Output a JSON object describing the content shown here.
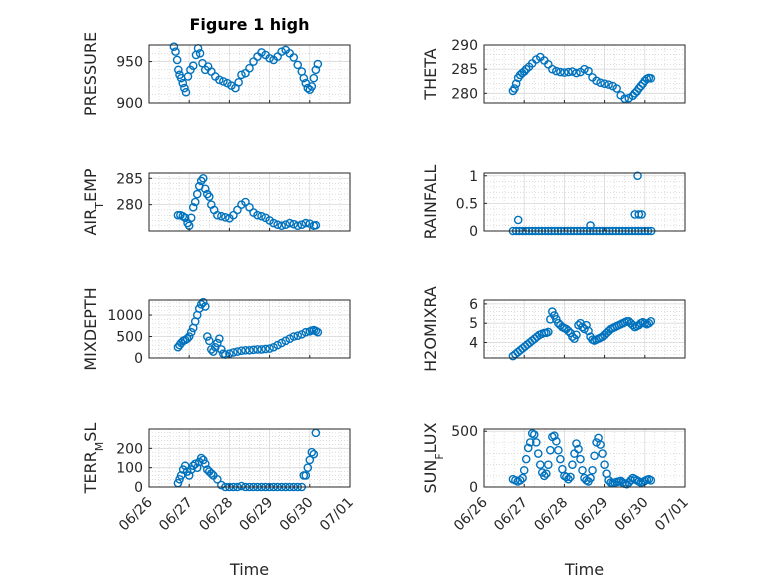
{
  "figure": {
    "title": "Figure 1 high",
    "xlabel": "Time"
  },
  "colors": {
    "marker": "#0072BD",
    "grid": "#d9d9d9",
    "axis": "#262626"
  },
  "chart_data": [
    {
      "type": "scatter",
      "name": "pressure",
      "title": "Figure 1 high",
      "ylabel": "PRESSURE",
      "ylim": [
        900,
        970
      ],
      "yticks": [
        900,
        950
      ],
      "grid": true,
      "xlim": [
        0,
        5
      ],
      "xticks": [
        "06/26",
        "06/27",
        "06/28",
        "06/29",
        "06/30",
        "07/01"
      ],
      "x": [
        0.62,
        0.66,
        0.7,
        0.73,
        0.76,
        0.8,
        0.84,
        0.88,
        0.92,
        0.97,
        1.03,
        1.1,
        1.17,
        1.22,
        1.27,
        1.33,
        1.4,
        1.47,
        1.55,
        1.65,
        1.75,
        1.85,
        1.95,
        2.05,
        2.15,
        2.23,
        2.3,
        2.4,
        2.5,
        2.6,
        2.7,
        2.8,
        2.9,
        3.0,
        3.1,
        3.2,
        3.3,
        3.4,
        3.5,
        3.6,
        3.7,
        3.8,
        3.85,
        3.9,
        3.95,
        4.0,
        4.05,
        4.1,
        4.15,
        4.2
      ],
      "y": [
        968,
        962,
        952,
        940,
        934,
        930,
        924,
        918,
        913,
        932,
        940,
        945,
        958,
        966,
        960,
        948,
        940,
        944,
        938,
        932,
        928,
        926,
        924,
        921,
        918,
        925,
        934,
        936,
        942,
        950,
        956,
        961,
        958,
        954,
        952,
        956,
        962,
        964,
        960,
        955,
        946,
        938,
        930,
        924,
        918,
        916,
        920,
        930,
        940,
        947
      ]
    },
    {
      "type": "scatter",
      "name": "theta",
      "ylabel": "THETA",
      "ylim": [
        278,
        290
      ],
      "yticks": [
        280,
        285,
        290
      ],
      "grid": true,
      "xlim": [
        0,
        5
      ],
      "xticks": [
        "06/26",
        "06/27",
        "06/28",
        "06/29",
        "06/30",
        "07/01"
      ],
      "x": [
        0.72,
        0.76,
        0.8,
        0.85,
        0.9,
        0.95,
        1.0,
        1.05,
        1.12,
        1.2,
        1.3,
        1.4,
        1.5,
        1.6,
        1.7,
        1.8,
        1.9,
        2.0,
        2.1,
        2.2,
        2.3,
        2.4,
        2.5,
        2.6,
        2.7,
        2.8,
        2.9,
        3.0,
        3.1,
        3.2,
        3.3,
        3.4,
        3.5,
        3.6,
        3.7,
        3.75,
        3.8,
        3.85,
        3.9,
        3.95,
        4.0,
        4.05,
        4.1,
        4.15
      ],
      "y": [
        280.5,
        281,
        282,
        283.2,
        283.8,
        284.2,
        284.5,
        285,
        285.5,
        286.2,
        287,
        287.5,
        286.8,
        286,
        285,
        284.6,
        284.4,
        284.3,
        284.4,
        284.5,
        284.2,
        284.4,
        285,
        284.6,
        283.3,
        282.6,
        282.2,
        282,
        281.8,
        281.5,
        281,
        279.6,
        278.9,
        279,
        279.5,
        280,
        280.4,
        281,
        281.5,
        282,
        282.6,
        283,
        283.2,
        283.1
      ]
    },
    {
      "type": "scatter",
      "name": "air_temp",
      "ylabel": "AIR_TEMP",
      "ylim": [
        275,
        286
      ],
      "yticks": [
        280,
        285
      ],
      "grid": true,
      "xlim": [
        0,
        5
      ],
      "xticks": [
        "06/26",
        "06/27",
        "06/28",
        "06/29",
        "06/30",
        "07/01"
      ],
      "x": [
        0.72,
        0.78,
        0.84,
        0.9,
        0.96,
        1.0,
        1.05,
        1.1,
        1.15,
        1.2,
        1.25,
        1.3,
        1.35,
        1.4,
        1.45,
        1.5,
        1.55,
        1.62,
        1.7,
        1.8,
        1.9,
        2.0,
        2.1,
        2.2,
        2.3,
        2.4,
        2.5,
        2.6,
        2.7,
        2.8,
        2.9,
        3.0,
        3.1,
        3.2,
        3.3,
        3.4,
        3.5,
        3.6,
        3.7,
        3.8,
        3.9,
        4.0,
        4.1,
        4.15
      ],
      "y": [
        278,
        278,
        277.8,
        277.5,
        276.5,
        276,
        277.5,
        279.5,
        280.5,
        282,
        283.5,
        284.5,
        285,
        283,
        282,
        281.5,
        280,
        279,
        278,
        277.8,
        277.6,
        277.4,
        278,
        279,
        280,
        280.5,
        279.5,
        278.5,
        278,
        277.8,
        277.5,
        277,
        276.5,
        276.2,
        276,
        276.2,
        276.5,
        276.3,
        276,
        276.2,
        276.5,
        276.4,
        276,
        276.1
      ]
    },
    {
      "type": "scatter",
      "name": "rainfall",
      "ylabel": "RAINFALL",
      "ylim": [
        0,
        1.05
      ],
      "yticks": [
        0,
        0.5,
        1
      ],
      "grid": true,
      "xlim": [
        0,
        5
      ],
      "xticks": [
        "06/26",
        "06/27",
        "06/28",
        "06/29",
        "06/30",
        "07/01"
      ],
      "x": [
        0.72,
        0.8,
        0.88,
        0.96,
        1.04,
        1.12,
        1.2,
        1.28,
        1.36,
        1.44,
        1.52,
        1.6,
        1.68,
        1.76,
        1.84,
        1.92,
        2.0,
        2.08,
        2.16,
        2.24,
        2.32,
        2.4,
        2.48,
        2.56,
        2.64,
        2.72,
        2.8,
        2.88,
        2.96,
        3.04,
        3.12,
        3.2,
        3.28,
        3.36,
        3.44,
        3.52,
        3.6,
        3.68,
        3.76,
        3.84,
        3.92,
        4.0,
        4.08,
        4.16,
        0.85,
        2.65,
        3.75,
        3.82,
        3.85,
        3.92
      ],
      "y": [
        0,
        0,
        0,
        0,
        0,
        0,
        0,
        0,
        0,
        0,
        0,
        0,
        0,
        0,
        0,
        0,
        0,
        0,
        0,
        0,
        0,
        0,
        0,
        0,
        0,
        0,
        0,
        0,
        0,
        0,
        0,
        0,
        0,
        0,
        0,
        0,
        0,
        0,
        0,
        0,
        0,
        0,
        0,
        0,
        0.2,
        0.1,
        0.3,
        1.0,
        0.3,
        0.3
      ]
    },
    {
      "type": "scatter",
      "name": "mixdepth",
      "ylabel": "MIXDEPTH",
      "ylim": [
        0,
        1350
      ],
      "yticks": [
        0,
        500,
        1000
      ],
      "grid": true,
      "xlim": [
        0,
        5
      ],
      "xticks": [
        "06/26",
        "06/27",
        "06/28",
        "06/29",
        "06/30",
        "07/01"
      ],
      "x": [
        0.72,
        0.76,
        0.8,
        0.85,
        0.9,
        0.95,
        1.0,
        1.05,
        1.1,
        1.15,
        1.2,
        1.25,
        1.3,
        1.35,
        1.4,
        1.45,
        1.5,
        1.55,
        1.6,
        1.65,
        1.7,
        1.75,
        1.8,
        1.85,
        1.9,
        2.0,
        2.1,
        2.2,
        2.3,
        2.4,
        2.5,
        2.6,
        2.7,
        2.8,
        2.9,
        3.0,
        3.1,
        3.2,
        3.3,
        3.4,
        3.5,
        3.6,
        3.7,
        3.8,
        3.9,
        4.0,
        4.05,
        4.1,
        4.15,
        4.2
      ],
      "y": [
        250,
        300,
        350,
        400,
        420,
        450,
        500,
        600,
        700,
        850,
        1000,
        1150,
        1250,
        1300,
        1200,
        500,
        400,
        200,
        150,
        250,
        350,
        450,
        200,
        100,
        80,
        100,
        130,
        150,
        170,
        180,
        180,
        190,
        200,
        200,
        210,
        220,
        250,
        300,
        350,
        400,
        450,
        500,
        520,
        550,
        600,
        620,
        640,
        650,
        630,
        600
      ]
    },
    {
      "type": "scatter",
      "name": "h2omixra",
      "ylabel": "H2OMIXRA",
      "ylim": [
        3.2,
        6.2
      ],
      "yticks": [
        4,
        5,
        6
      ],
      "grid": true,
      "xlim": [
        0,
        5
      ],
      "xticks": [
        "06/26",
        "06/27",
        "06/28",
        "06/29",
        "06/30",
        "07/01"
      ],
      "x": [
        0.72,
        0.78,
        0.84,
        0.9,
        0.96,
        1.02,
        1.08,
        1.14,
        1.2,
        1.26,
        1.32,
        1.38,
        1.44,
        1.5,
        1.55,
        1.6,
        1.65,
        1.7,
        1.75,
        1.8,
        1.85,
        1.9,
        1.95,
        2.0,
        2.05,
        2.1,
        2.15,
        2.2,
        2.25,
        2.3,
        2.35,
        2.4,
        2.45,
        2.5,
        2.55,
        2.6,
        2.65,
        2.7,
        2.75,
        2.8,
        2.85,
        2.9,
        2.95,
        3.0,
        3.05,
        3.1,
        3.15,
        3.2,
        3.25,
        3.3,
        3.35,
        3.4,
        3.45,
        3.5,
        3.55,
        3.6,
        3.65,
        3.7,
        3.75,
        3.8,
        3.85,
        3.9,
        3.95,
        4.0,
        4.05,
        4.1,
        4.15
      ],
      "y": [
        3.3,
        3.4,
        3.5,
        3.6,
        3.7,
        3.8,
        3.9,
        4.0,
        4.1,
        4.2,
        4.3,
        4.4,
        4.45,
        4.5,
        4.5,
        4.55,
        5.2,
        5.6,
        5.4,
        5.2,
        5.0,
        4.9,
        4.8,
        4.75,
        4.7,
        4.6,
        4.5,
        4.3,
        4.2,
        4.4,
        4.9,
        5.0,
        4.8,
        4.7,
        4.9,
        4.6,
        4.3,
        4.15,
        4.1,
        4.15,
        4.2,
        4.25,
        4.3,
        4.4,
        4.5,
        4.6,
        4.7,
        4.75,
        4.8,
        4.85,
        4.9,
        4.95,
        5.0,
        5.05,
        5.1,
        5.1,
        5.0,
        4.9,
        4.8,
        4.85,
        4.9,
        5.0,
        5.05,
        5.0,
        4.95,
        5.0,
        5.1
      ]
    },
    {
      "type": "scatter",
      "name": "terr_msl",
      "ylabel": "TERR_MSL",
      "ylim": [
        0,
        300
      ],
      "yticks": [
        0,
        100,
        200
      ],
      "grid": true,
      "xlim": [
        0,
        5
      ],
      "xticks": [
        "06/26",
        "06/27",
        "06/28",
        "06/29",
        "06/30",
        "07/01"
      ],
      "x": [
        0.72,
        0.76,
        0.8,
        0.85,
        0.9,
        0.95,
        1.0,
        1.05,
        1.1,
        1.15,
        1.2,
        1.25,
        1.3,
        1.35,
        1.4,
        1.45,
        1.5,
        1.55,
        1.6,
        1.7,
        1.8,
        1.9,
        2.0,
        2.1,
        2.2,
        2.3,
        2.4,
        2.5,
        2.6,
        2.7,
        2.8,
        2.9,
        3.0,
        3.1,
        3.2,
        3.3,
        3.4,
        3.5,
        3.6,
        3.7,
        3.8,
        3.85,
        3.9,
        3.95,
        4.0,
        4.05,
        4.1,
        4.15
      ],
      "y": [
        20,
        40,
        60,
        90,
        110,
        80,
        60,
        90,
        110,
        120,
        100,
        130,
        150,
        140,
        120,
        90,
        80,
        70,
        60,
        40,
        10,
        0,
        0,
        0,
        0,
        5,
        0,
        0,
        0,
        0,
        0,
        0,
        0,
        0,
        0,
        0,
        0,
        0,
        0,
        0,
        0,
        60,
        60,
        100,
        140,
        180,
        170,
        280
      ]
    },
    {
      "type": "scatter",
      "name": "sun_flux",
      "ylabel": "SUN_FLUX",
      "ylim": [
        0,
        520
      ],
      "yticks": [
        0,
        500
      ],
      "grid": true,
      "xlim": [
        0,
        5
      ],
      "xticks": [
        "06/26",
        "06/27",
        "06/28",
        "06/29",
        "06/30",
        "07/01"
      ],
      "x": [
        0.72,
        0.78,
        0.84,
        0.9,
        0.96,
        1.0,
        1.05,
        1.1,
        1.15,
        1.2,
        1.25,
        1.3,
        1.35,
        1.4,
        1.45,
        1.5,
        1.55,
        1.6,
        1.65,
        1.7,
        1.75,
        1.8,
        1.85,
        1.9,
        1.95,
        2.0,
        2.05,
        2.1,
        2.15,
        2.2,
        2.25,
        2.3,
        2.35,
        2.4,
        2.45,
        2.5,
        2.55,
        2.6,
        2.65,
        2.7,
        2.75,
        2.8,
        2.85,
        2.9,
        2.95,
        3.0,
        3.05,
        3.1,
        3.15,
        3.2,
        3.25,
        3.3,
        3.35,
        3.4,
        3.45,
        3.5,
        3.55,
        3.6,
        3.65,
        3.7,
        3.75,
        3.8,
        3.85,
        3.9,
        3.95,
        4.0,
        4.05,
        4.1,
        4.15
      ],
      "y": [
        70,
        60,
        50,
        60,
        80,
        150,
        250,
        350,
        400,
        480,
        470,
        400,
        300,
        200,
        130,
        100,
        120,
        200,
        330,
        450,
        460,
        410,
        330,
        250,
        160,
        100,
        90,
        70,
        90,
        200,
        300,
        390,
        340,
        250,
        150,
        80,
        60,
        50,
        80,
        150,
        280,
        400,
        440,
        380,
        300,
        200,
        120,
        60,
        40,
        35,
        40,
        45,
        50,
        55,
        40,
        30,
        25,
        40,
        60,
        80,
        70,
        60,
        50,
        40,
        45,
        55,
        65,
        70,
        60
      ]
    }
  ]
}
